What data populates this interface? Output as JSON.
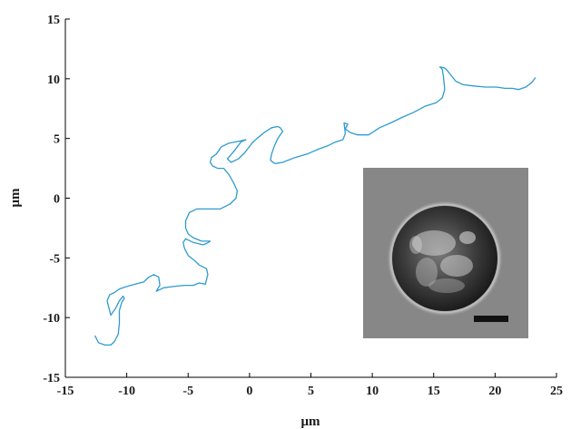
{
  "chart_data": {
    "type": "line",
    "xlabel": "μm",
    "ylabel": "μm",
    "xlim": [
      -15,
      25
    ],
    "ylim": [
      -15,
      15
    ],
    "xticks": [
      -15,
      -10,
      -5,
      0,
      5,
      10,
      15,
      20,
      25
    ],
    "yticks": [
      -15,
      -10,
      -5,
      0,
      5,
      10,
      15
    ],
    "grid": false,
    "legend": "none",
    "series": [
      {
        "color": "#2e9bd0",
        "x": [
          -12.6,
          -12.3,
          -11.8,
          -11.3,
          -11.0,
          -10.7,
          -10.6,
          -10.6,
          -10.4,
          -10.2,
          -10.3,
          -10.6,
          -10.9,
          -11.3,
          -11.4,
          -11.6,
          -11.4,
          -11.0,
          -10.6,
          -10.0,
          -9.3,
          -8.6,
          -8.2,
          -7.8,
          -7.4,
          -7.3,
          -7.6,
          -7.0,
          -6.2,
          -5.3,
          -4.6,
          -4.1,
          -3.6,
          -3.4,
          -3.5,
          -4.1,
          -4.5,
          -5.0,
          -5.3,
          -5.4,
          -5.2,
          -4.6,
          -3.8,
          -3.5,
          -3.2,
          -3.9,
          -4.6,
          -5.0,
          -5.2,
          -5.2,
          -4.9,
          -4.3,
          -3.4,
          -2.4,
          -1.6,
          -1.1,
          -1.0,
          -1.3,
          -1.7,
          -2.1,
          -2.6,
          -3.0,
          -3.2,
          -3.1,
          -2.7,
          -2.3,
          -1.7,
          -1.2,
          -0.7,
          -0.3,
          -0.7,
          -1.3,
          -1.8,
          -1.5,
          -0.9,
          -0.4,
          0.2,
          0.6,
          1.2,
          1.8,
          2.3,
          2.5,
          2.7,
          2.3,
          2.0,
          1.8,
          1.7,
          1.9,
          2.1,
          2.7,
          3.7,
          4.7,
          5.6,
          6.4,
          7.0,
          7.6,
          7.8,
          7.7,
          8.0,
          7.8,
          8.2,
          8.8,
          9.7,
          10.6,
          11.5,
          12.5,
          13.4,
          14.3,
          15.2,
          15.7,
          15.9,
          15.8,
          15.7,
          15.5,
          15.9,
          16.1,
          16.4,
          16.8,
          17.4,
          18.2,
          19.2,
          20.1,
          20.8,
          21.4,
          21.9,
          22.5,
          23.0,
          23.3
        ],
        "y": [
          -11.5,
          -12.1,
          -12.3,
          -12.3,
          -12.0,
          -11.4,
          -10.5,
          -9.4,
          -8.7,
          -8.4,
          -8.2,
          -8.6,
          -9.2,
          -9.8,
          -9.4,
          -8.6,
          -8.1,
          -7.9,
          -7.6,
          -7.4,
          -7.2,
          -7.0,
          -6.6,
          -6.4,
          -6.6,
          -7.3,
          -7.8,
          -7.5,
          -7.4,
          -7.3,
          -7.3,
          -7.1,
          -7.2,
          -6.4,
          -5.9,
          -5.6,
          -5.2,
          -4.8,
          -4.2,
          -3.7,
          -3.4,
          -3.7,
          -3.9,
          -3.8,
          -3.6,
          -3.6,
          -3.3,
          -3.0,
          -2.5,
          -1.9,
          -1.2,
          -0.9,
          -0.9,
          -0.9,
          -0.5,
          0.0,
          0.6,
          1.3,
          2.0,
          2.5,
          2.5,
          2.7,
          3.0,
          3.4,
          3.7,
          4.3,
          4.6,
          4.7,
          4.8,
          4.9,
          4.7,
          3.9,
          3.3,
          3.0,
          3.3,
          3.8,
          4.6,
          5.0,
          5.5,
          5.9,
          6.0,
          5.9,
          5.6,
          5.0,
          4.3,
          3.7,
          3.2,
          3.0,
          2.9,
          3.0,
          3.4,
          3.7,
          4.1,
          4.4,
          4.7,
          4.9,
          5.4,
          6.3,
          6.2,
          5.8,
          5.5,
          5.3,
          5.3,
          5.9,
          6.3,
          6.8,
          7.2,
          7.7,
          8.0,
          8.4,
          9.1,
          10.1,
          10.8,
          11.0,
          10.9,
          10.7,
          10.3,
          9.8,
          9.5,
          9.4,
          9.3,
          9.3,
          9.2,
          9.2,
          9.1,
          9.3,
          9.7,
          10.1
        ]
      }
    ]
  },
  "inset": {
    "type": "micrograph",
    "description_icon": "cell-micrograph",
    "background_color": "#878787",
    "scale_bar_color": "#111111"
  }
}
